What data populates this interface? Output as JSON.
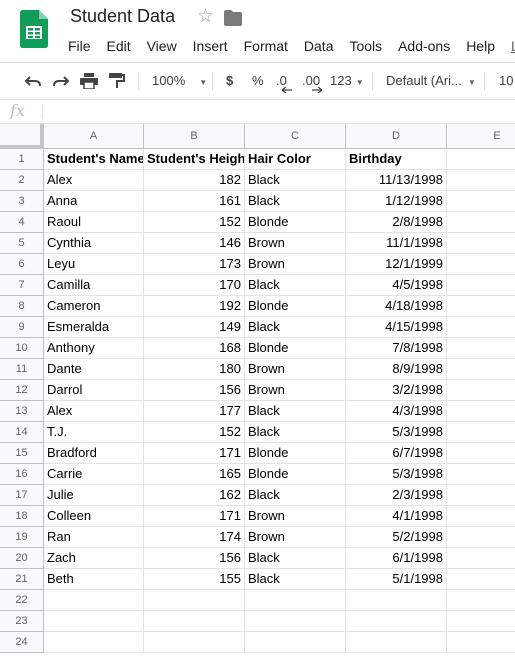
{
  "app": {
    "doc_title": "Student Data",
    "menu": [
      "File",
      "Edit",
      "View",
      "Insert",
      "Format",
      "Data",
      "Tools",
      "Add-ons",
      "Help",
      "L"
    ]
  },
  "toolbar": {
    "zoom": "100%",
    "currency": "$",
    "percent": "%",
    "dec_decrease": ".0",
    "dec_increase": ".00",
    "more_formats": "123",
    "font": "Default (Ari...",
    "font_size": "10"
  },
  "formula_bar": {
    "fx": "fx",
    "value": ""
  },
  "columns": [
    "A",
    "B",
    "C",
    "D",
    "E"
  ],
  "rows": [
    [
      "Student's Name",
      "Student's Heigh",
      "Hair Color",
      "Birthday",
      ""
    ],
    [
      "Alex",
      "182",
      "Black",
      "11/13/1998",
      ""
    ],
    [
      "Anna",
      "161",
      "Black",
      "1/12/1998",
      ""
    ],
    [
      "Raoul",
      "152",
      "Blonde",
      "2/8/1998",
      ""
    ],
    [
      "Cynthia",
      "146",
      "Brown",
      "11/1/1998",
      ""
    ],
    [
      "Leyu",
      "173",
      "Brown",
      "12/1/1999",
      ""
    ],
    [
      "Camilla",
      "170",
      "Black",
      "4/5/1998",
      ""
    ],
    [
      "Cameron",
      "192",
      "Blonde",
      "4/18/1998",
      ""
    ],
    [
      "Esmeralda",
      "149",
      "Black",
      "4/15/1998",
      ""
    ],
    [
      "Anthony",
      "168",
      "Blonde",
      "7/8/1998",
      ""
    ],
    [
      "Dante",
      "180",
      "Brown",
      "8/9/1998",
      ""
    ],
    [
      "Darrol",
      "156",
      "Brown",
      "3/2/1998",
      ""
    ],
    [
      "Alex",
      "177",
      "Black",
      "4/3/1998",
      ""
    ],
    [
      "T.J.",
      "152",
      "Black",
      "5/3/1998",
      ""
    ],
    [
      "Bradford",
      "171",
      "Blonde",
      "6/7/1998",
      ""
    ],
    [
      "Carrie",
      "165",
      "Blonde",
      "5/3/1998",
      ""
    ],
    [
      "Julie",
      "162",
      "Black",
      "2/3/1998",
      ""
    ],
    [
      "Colleen",
      "171",
      "Brown",
      "4/1/1998",
      ""
    ],
    [
      "Ran",
      "174",
      "Brown",
      "5/2/1998",
      ""
    ],
    [
      "Zach",
      "156",
      "Black",
      "6/1/1998",
      ""
    ],
    [
      "Beth",
      "155",
      "Black",
      "5/1/1998",
      ""
    ],
    [
      "",
      "",
      "",
      "",
      ""
    ],
    [
      "",
      "",
      "",
      "",
      ""
    ],
    [
      "",
      "",
      "",
      "",
      ""
    ]
  ],
  "row_numbers": [
    "1",
    "2",
    "3",
    "4",
    "5",
    "6",
    "7",
    "8",
    "9",
    "10",
    "11",
    "12",
    "13",
    "14",
    "15",
    "16",
    "17",
    "18",
    "19",
    "20",
    "21",
    "22",
    "23",
    "24"
  ],
  "colors": {
    "sheets_green": "#0f9d58",
    "header_bg": "#f8f9fa",
    "gridline": "#e2e3e3"
  }
}
